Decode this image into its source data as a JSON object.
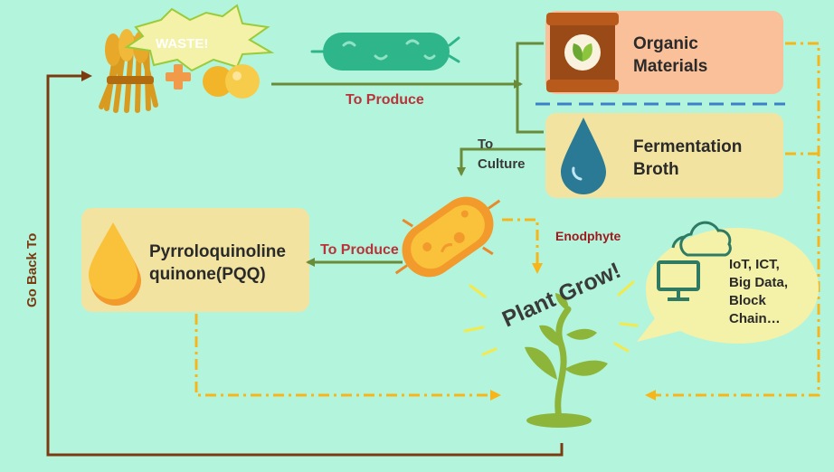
{
  "labels": {
    "waste": "WASTE!",
    "to_produce_top": "To Produce",
    "to_culture_line1": "To",
    "to_culture_line2": "Culture",
    "to_produce_mid": "To Produce",
    "endophyte": "Enodphyte",
    "go_back_to": "Go Back To",
    "plant_grow": "Plant Grow!"
  },
  "boxes": {
    "organic_materials": {
      "line1": "Organic",
      "line2": "Materials"
    },
    "fermentation_broth": {
      "line1": "Fermentation",
      "line2": "Broth"
    },
    "pqq": {
      "line1": "Pyrroloquinoline",
      "line2": "quinone(PQQ)"
    }
  },
  "tech_bubble": {
    "lines": [
      "IoT, ICT,",
      "Big Data,",
      "Block",
      "Chain…"
    ]
  },
  "colors": {
    "background": "#b3f5dc",
    "arrow_green": "#6a8b3a",
    "go_back_brown": "#7b3a10",
    "dash_orange": "#f7b519",
    "produce_label": "#b8333a",
    "endophyte_label": "#a0181e",
    "organic_box": "#f9c09a",
    "broth_box": "#f2e4a0",
    "pqq_box": "#f2e4a0"
  },
  "icons": [
    "wheat-bundle-icon",
    "plus-icon",
    "egg-icon",
    "green-bacterium-icon",
    "sack-icon",
    "water-drop-icon",
    "orange-bacterium-icon",
    "oil-drop-icon",
    "plant-icon",
    "cloud-icon",
    "computer-icon"
  ]
}
